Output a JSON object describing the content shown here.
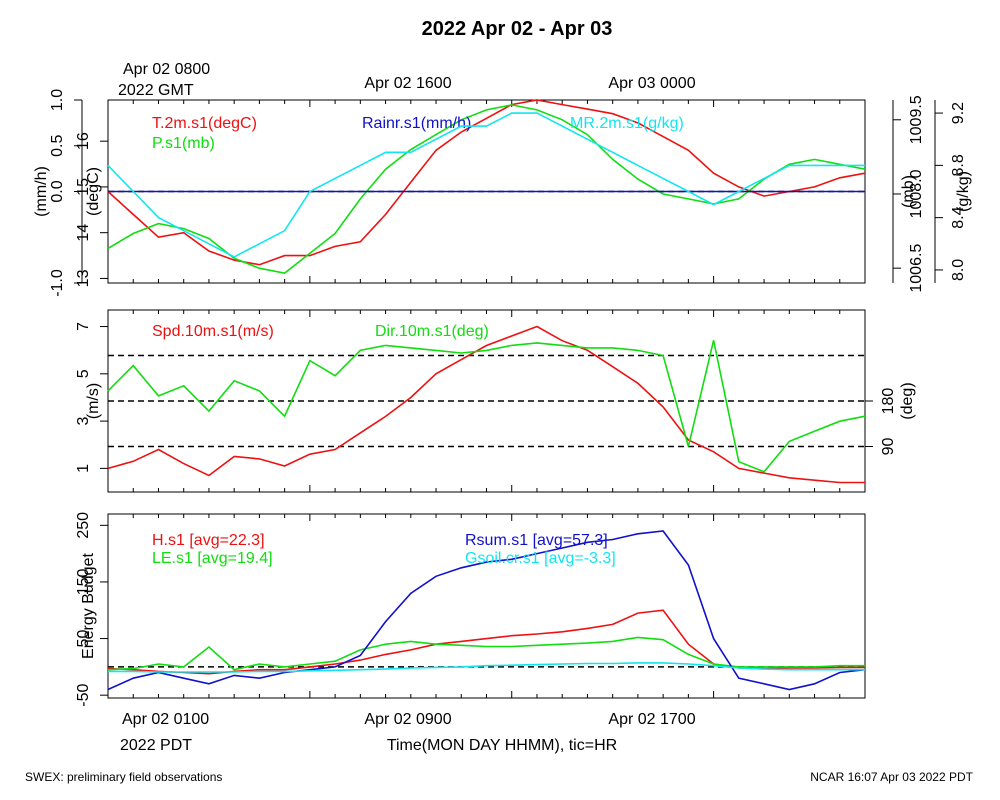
{
  "title": "2022 Apr 02 - Apr 03",
  "top_time": {
    "first_label": "Apr 02 0800",
    "first_sub": "2022 GMT",
    "labels": [
      "Apr 02 1600",
      "Apr 03 0000"
    ]
  },
  "bottom_time": {
    "first_label": "Apr 02 0100",
    "first_sub": "2022 PDT",
    "labels": [
      "Apr 02 0900",
      "Apr 02 1700"
    ],
    "axis_title": "Time(MON DAY HHMM), tic=HR"
  },
  "footer": {
    "left": "SWEX: preliminary field observations",
    "right": "NCAR 16:07 Apr 03 2022 PDT"
  },
  "colors": {
    "red": "#ee1111",
    "green": "#11dd11",
    "blue": "#1111cc",
    "cyan": "#11e6f0",
    "black": "#000000"
  },
  "chart_data": [
    {
      "type": "line",
      "panel": "met",
      "x_hours": [
        0,
        30
      ],
      "axes": [
        {
          "label": "(mm/h)",
          "ticks": [
            "-1.0",
            "0.0",
            "0.5",
            "1.0"
          ],
          "tick_values": [
            -1.0,
            0.0,
            0.5,
            1.0
          ],
          "range": [
            -1.0,
            1.0
          ],
          "side": "left"
        },
        {
          "label": "(degC)",
          "ticks": [
            "13",
            "14",
            "15",
            "16"
          ],
          "tick_values": [
            13,
            14,
            15,
            16
          ],
          "range": [
            12.9,
            16.9
          ],
          "side": "left"
        },
        {
          "label": "(mb)",
          "ticks": [
            "1006.5",
            "1008.0",
            "1009.5"
          ],
          "tick_values": [
            1006.5,
            1008.0,
            1009.5
          ],
          "range": [
            1006.2,
            1009.9
          ],
          "side": "right"
        },
        {
          "label": "(g/kg)",
          "ticks": [
            "8.0",
            "8.4",
            "8.8",
            "9.2"
          ],
          "tick_values": [
            8.0,
            8.4,
            8.8,
            9.2
          ],
          "range": [
            7.9,
            9.3
          ],
          "side": "right"
        }
      ],
      "series": [
        {
          "name": "T.2m.s1(degC)",
          "color": "#ee1111",
          "x": [
            0,
            1,
            2,
            3,
            4,
            5,
            6,
            7,
            8,
            9,
            10,
            11,
            12,
            13,
            14,
            15,
            16,
            17,
            18,
            19,
            20,
            21,
            22,
            23,
            24,
            25,
            26,
            27,
            28,
            29,
            30
          ],
          "y": [
            14.9,
            14.4,
            13.9,
            14.0,
            13.6,
            13.4,
            13.3,
            13.5,
            13.5,
            13.7,
            13.8,
            14.4,
            15.1,
            15.8,
            16.2,
            16.5,
            16.8,
            16.9,
            16.8,
            16.7,
            16.6,
            16.4,
            16.1,
            15.8,
            15.3,
            15.0,
            14.8,
            14.9,
            15.0,
            15.2,
            15.3
          ]
        },
        {
          "name": "P.s1(mb)",
          "color": "#11dd11",
          "x": [
            0,
            1,
            2,
            3,
            4,
            5,
            6,
            7,
            8,
            9,
            10,
            11,
            12,
            13,
            14,
            15,
            16,
            17,
            18,
            19,
            20,
            21,
            22,
            23,
            24,
            25,
            26,
            27,
            28,
            29,
            30
          ],
          "y": [
            1006.9,
            1007.2,
            1007.4,
            1007.3,
            1007.1,
            1006.7,
            1006.5,
            1006.4,
            1006.8,
            1007.2,
            1007.9,
            1008.5,
            1008.9,
            1009.2,
            1009.5,
            1009.7,
            1009.8,
            1009.7,
            1009.5,
            1009.2,
            1008.7,
            1008.3,
            1008.0,
            1007.9,
            1007.8,
            1007.9,
            1008.3,
            1008.6,
            1008.7,
            1008.6,
            1008.5
          ]
        },
        {
          "name": "Rainr.s1(mm/h)",
          "color": "#1111cc",
          "x": [
            0,
            30
          ],
          "y": [
            0.0,
            0.0
          ]
        },
        {
          "name": "MR.2m.s1(g/kg)",
          "color": "#11e6f0",
          "x": [
            0,
            1,
            2,
            3,
            4,
            5,
            6,
            7,
            8,
            9,
            10,
            11,
            12,
            13,
            14,
            15,
            16,
            17,
            18,
            19,
            20,
            21,
            22,
            23,
            24,
            25,
            26,
            27,
            28,
            29,
            30
          ],
          "y": [
            8.8,
            8.6,
            8.4,
            8.3,
            8.2,
            8.1,
            8.2,
            8.3,
            8.6,
            8.7,
            8.8,
            8.9,
            8.9,
            9.0,
            9.1,
            9.1,
            9.2,
            9.2,
            9.1,
            9.0,
            8.9,
            8.8,
            8.7,
            8.6,
            8.5,
            8.6,
            8.7,
            8.8,
            8.8,
            8.8,
            8.8
          ]
        }
      ],
      "ref_lines": [
        0.0
      ]
    },
    {
      "type": "line",
      "panel": "wind",
      "x_hours": [
        0,
        30
      ],
      "axes": [
        {
          "label": "(m/s)",
          "ticks": [
            "1",
            "3",
            "5",
            "7"
          ],
          "tick_values": [
            1,
            3,
            5,
            7
          ],
          "range": [
            0.0,
            7.7
          ],
          "side": "left"
        },
        {
          "label": "(deg)",
          "ticks": [
            "90",
            "180"
          ],
          "tick_values": [
            90,
            180
          ],
          "range": [
            0,
            360
          ],
          "side": "right"
        }
      ],
      "series": [
        {
          "name": "Spd.10m.s1(m/s)",
          "color": "#ee1111",
          "x": [
            0,
            1,
            2,
            3,
            4,
            5,
            6,
            7,
            8,
            9,
            10,
            11,
            12,
            13,
            14,
            15,
            16,
            17,
            18,
            19,
            20,
            21,
            22,
            23,
            24,
            25,
            26,
            27,
            28,
            29,
            30
          ],
          "y": [
            1.0,
            1.3,
            1.8,
            1.2,
            0.7,
            1.5,
            1.4,
            1.1,
            1.6,
            1.8,
            2.5,
            3.2,
            4.0,
            5.0,
            5.6,
            6.2,
            6.6,
            7.0,
            6.4,
            6.0,
            5.3,
            4.6,
            3.6,
            2.2,
            1.7,
            1.0,
            0.8,
            0.6,
            0.5,
            0.4,
            0.4
          ]
        },
        {
          "name": "Dir.10m.s1(deg)",
          "color": "#11dd11",
          "x": [
            0,
            1,
            2,
            3,
            4,
            5,
            6,
            7,
            8,
            9,
            10,
            11,
            12,
            13,
            14,
            15,
            16,
            17,
            18,
            19,
            20,
            21,
            22,
            23,
            24,
            25,
            26,
            27,
            28,
            29,
            30
          ],
          "y": [
            200,
            250,
            190,
            210,
            160,
            220,
            200,
            150,
            260,
            230,
            280,
            290,
            285,
            280,
            275,
            280,
            290,
            295,
            290,
            285,
            285,
            280,
            270,
            90,
            300,
            60,
            40,
            100,
            120,
            140,
            150
          ]
        }
      ],
      "ref_lines": [
        90,
        180,
        270
      ]
    },
    {
      "type": "line",
      "panel": "energy",
      "x_hours": [
        0,
        30
      ],
      "axes": [
        {
          "label": "Energy Budget",
          "ticks": [
            "-50",
            "50",
            "150",
            "250"
          ],
          "tick_values": [
            -50,
            50,
            150,
            250
          ],
          "range": [
            -55,
            270
          ],
          "side": "left"
        }
      ],
      "series": [
        {
          "name": "H.s1 [avg=22.3]",
          "color": "#ee1111",
          "x": [
            0,
            1,
            2,
            3,
            4,
            5,
            6,
            7,
            8,
            9,
            10,
            11,
            12,
            13,
            14,
            15,
            16,
            17,
            18,
            19,
            20,
            21,
            22,
            23,
            24,
            25,
            26,
            27,
            28,
            29,
            30
          ],
          "y": [
            -3,
            -5,
            -8,
            -10,
            -12,
            -8,
            -5,
            -5,
            0,
            5,
            12,
            22,
            30,
            40,
            45,
            50,
            55,
            58,
            62,
            68,
            75,
            95,
            100,
            40,
            5,
            -2,
            -3,
            -2,
            -2,
            -1,
            -1
          ]
        },
        {
          "name": "LE.s1 [avg=19.4]",
          "color": "#11dd11",
          "x": [
            0,
            1,
            2,
            3,
            4,
            5,
            6,
            7,
            8,
            9,
            10,
            11,
            12,
            13,
            14,
            15,
            16,
            17,
            18,
            19,
            20,
            21,
            22,
            23,
            24,
            25,
            26,
            27,
            28,
            29,
            30
          ],
          "y": [
            -5,
            -3,
            5,
            0,
            35,
            -5,
            5,
            0,
            5,
            10,
            30,
            40,
            45,
            40,
            38,
            36,
            36,
            38,
            40,
            42,
            45,
            52,
            48,
            22,
            5,
            0,
            0,
            0,
            0,
            2,
            2
          ]
        },
        {
          "name": "Rsum.s1 [avg=57.3]",
          "color": "#1111cc",
          "x": [
            0,
            1,
            2,
            3,
            4,
            5,
            6,
            7,
            8,
            9,
            10,
            11,
            12,
            13,
            14,
            15,
            16,
            17,
            18,
            19,
            20,
            21,
            22,
            23,
            24,
            25,
            26,
            27,
            28,
            29,
            30
          ],
          "y": [
            -40,
            -20,
            -10,
            -20,
            -30,
            -15,
            -20,
            -10,
            -5,
            0,
            20,
            80,
            130,
            160,
            175,
            185,
            190,
            200,
            210,
            220,
            225,
            235,
            240,
            180,
            50,
            -20,
            -30,
            -40,
            -30,
            -10,
            -5
          ]
        },
        {
          "name": "Gsoil.cr.s1 [avg=-3.3]",
          "color": "#11e6f0",
          "x": [
            0,
            1,
            2,
            3,
            4,
            5,
            6,
            7,
            8,
            9,
            10,
            11,
            12,
            13,
            14,
            15,
            16,
            17,
            18,
            19,
            20,
            21,
            22,
            23,
            24,
            25,
            26,
            27,
            28,
            29,
            30
          ],
          "y": [
            -8,
            -8,
            -9,
            -9,
            -9,
            -9,
            -8,
            -8,
            -7,
            -6,
            -5,
            -4,
            -2,
            -1,
            0,
            2,
            3,
            4,
            5,
            6,
            6,
            7,
            7,
            5,
            2,
            -2,
            -4,
            -5,
            -5,
            -5,
            -5
          ]
        }
      ],
      "ref_lines": [
        0
      ]
    }
  ]
}
